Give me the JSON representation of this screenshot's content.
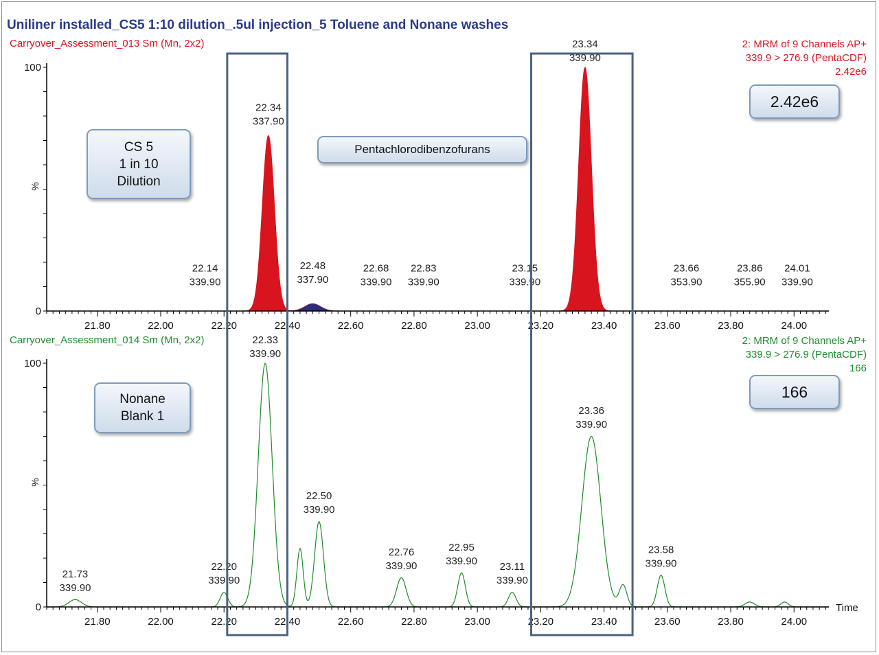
{
  "title": "Uniliner installed_CS5 1:10 dilution_.5ul injection_5 Toluene and Nonane washes",
  "colors": {
    "title": "#2a3a8c",
    "top_trace": "#d8141e",
    "bottom_trace": "#1e8c2a",
    "box": "#4a6280",
    "axis": "#000000"
  },
  "callouts": {
    "cs5": "CS 5\n1 in 10\nDilution",
    "compound": "Pentachlorodibenzofurans",
    "top_intensity": "2.42e6",
    "nonane": "Nonane\nBlank 1",
    "bottom_intensity": "166"
  },
  "highlight_windows": [
    {
      "x_start": 22.21,
      "x_end": 22.4
    },
    {
      "x_start": 23.17,
      "x_end": 23.49
    }
  ],
  "chart_data": [
    {
      "type": "area",
      "trace_name": "Carryover_Assessment_013 Sm (Mn, 2x2)",
      "meta": [
        "2: MRM of 9 Channels AP+",
        "339.9 > 276.9 (PentaCDF)",
        "2.42e6"
      ],
      "ylabel": "%",
      "xlim": [
        21.64,
        24.11
      ],
      "ylim": [
        0,
        100
      ],
      "xticks": [
        "21.80",
        "22.00",
        "22.20",
        "22.40",
        "22.60",
        "22.80",
        "23.00",
        "23.20",
        "23.40",
        "23.60",
        "23.80",
        "24.00"
      ],
      "yticks": [
        "0",
        "100"
      ],
      "peaks": [
        {
          "rt": 22.34,
          "height": 72,
          "sigma": 0.019
        },
        {
          "rt": 23.34,
          "height": 100,
          "sigma": 0.02
        },
        {
          "rt": 22.48,
          "height": 3,
          "sigma": 0.025
        }
      ],
      "annotations": [
        {
          "rt": "22.14",
          "mz": "339.90",
          "x": 22.14,
          "y": 8
        },
        {
          "rt": "22.34",
          "mz": "337.90",
          "x": 22.34,
          "y": 74
        },
        {
          "rt": "22.48",
          "mz": "337.90",
          "x": 22.48,
          "y": 9
        },
        {
          "rt": "22.68",
          "mz": "339.90",
          "x": 22.68,
          "y": 8
        },
        {
          "rt": "22.83",
          "mz": "339.90",
          "x": 22.83,
          "y": 8
        },
        {
          "rt": "23.15",
          "mz": "339.90",
          "x": 23.15,
          "y": 8
        },
        {
          "rt": "23.34",
          "mz": "339.90",
          "x": 23.34,
          "y": 100
        },
        {
          "rt": "23.66",
          "mz": "353.90",
          "x": 23.66,
          "y": 8
        },
        {
          "rt": "23.86",
          "mz": "355.90",
          "x": 23.86,
          "y": 8
        },
        {
          "rt": "24.01",
          "mz": "339.90",
          "x": 24.01,
          "y": 8
        }
      ]
    },
    {
      "type": "line",
      "trace_name": "Carryover_Assessment_014 Sm (Mn, 2x2)",
      "meta": [
        "2: MRM of 9 Channels AP+",
        "339.9 > 276.9 (PentaCDF)",
        "166"
      ],
      "ylabel": "%",
      "xlabel": "Time",
      "xlim": [
        21.64,
        24.11
      ],
      "ylim": [
        0,
        100
      ],
      "xticks": [
        "21.80",
        "22.00",
        "22.20",
        "22.40",
        "22.60",
        "22.80",
        "23.00",
        "23.20",
        "23.40",
        "23.60",
        "23.80",
        "24.00"
      ],
      "yticks": [
        "0",
        "100"
      ],
      "peaks": [
        {
          "rt": 21.73,
          "height": 3,
          "sigma": 0.02
        },
        {
          "rt": 22.2,
          "height": 6,
          "sigma": 0.012
        },
        {
          "rt": 22.33,
          "height": 100,
          "sigma": 0.022
        },
        {
          "rt": 22.44,
          "height": 24,
          "sigma": 0.01
        },
        {
          "rt": 22.5,
          "height": 35,
          "sigma": 0.014
        },
        {
          "rt": 22.76,
          "height": 12,
          "sigma": 0.015
        },
        {
          "rt": 22.95,
          "height": 14,
          "sigma": 0.012
        },
        {
          "rt": 23.11,
          "height": 6,
          "sigma": 0.012
        },
        {
          "rt": 23.36,
          "height": 70,
          "sigma": 0.03
        },
        {
          "rt": 23.46,
          "height": 9,
          "sigma": 0.012
        },
        {
          "rt": 23.58,
          "height": 13,
          "sigma": 0.012
        },
        {
          "rt": 23.86,
          "height": 2,
          "sigma": 0.015
        },
        {
          "rt": 23.97,
          "height": 2,
          "sigma": 0.012
        }
      ],
      "annotations": [
        {
          "rt": "21.73",
          "mz": "339.90",
          "x": 21.73,
          "y": 4
        },
        {
          "rt": "22.20",
          "mz": "339.90",
          "x": 22.2,
          "y": 7
        },
        {
          "rt": "22.33",
          "mz": "339.90",
          "x": 22.33,
          "y": 100
        },
        {
          "rt": "22.50",
          "mz": "339.90",
          "x": 22.5,
          "y": 36
        },
        {
          "rt": "22.76",
          "mz": "339.90",
          "x": 22.76,
          "y": 13
        },
        {
          "rt": "22.95",
          "mz": "339.90",
          "x": 22.95,
          "y": 15
        },
        {
          "rt": "23.11",
          "mz": "339.90",
          "x": 23.11,
          "y": 7
        },
        {
          "rt": "23.36",
          "mz": "339.90",
          "x": 23.36,
          "y": 71
        },
        {
          "rt": "23.58",
          "mz": "339.90",
          "x": 23.58,
          "y": 14
        }
      ]
    }
  ]
}
